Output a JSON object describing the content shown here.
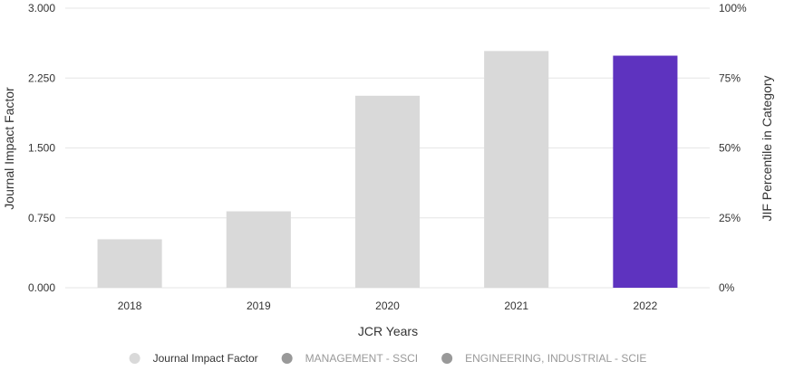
{
  "chart_data": {
    "type": "bar",
    "categories": [
      "2018",
      "2019",
      "2020",
      "2021",
      "2022"
    ],
    "series": [
      {
        "name": "Journal Impact Factor",
        "values": [
          0.52,
          0.82,
          2.06,
          2.54,
          2.49
        ]
      }
    ],
    "highlight_index": 4,
    "xlabel": "JCR Years",
    "ylabel": "Journal Impact Factor",
    "y2label": "JIF Percentile in Category",
    "ylim": [
      0,
      3
    ],
    "y2lim": [
      0,
      100
    ],
    "y_ticks": [
      "0.000",
      "0.750",
      "1.500",
      "2.250",
      "3.000"
    ],
    "y_tick_values": [
      0,
      0.75,
      1.5,
      2.25,
      3
    ],
    "y2_ticks": [
      "0%",
      "25%",
      "50%",
      "75%",
      "100%"
    ],
    "y2_tick_values": [
      0,
      25,
      50,
      75,
      100
    ],
    "grid": true,
    "legend_position": "bottom",
    "legend": [
      {
        "label": "Journal Impact Factor",
        "color": "#d9d9d9",
        "active": true
      },
      {
        "label": "MANAGEMENT - SSCI",
        "color": "#999999",
        "active": false
      },
      {
        "label": "ENGINEERING, INDUSTRIAL - SCIE",
        "color": "#999999",
        "active": false
      }
    ],
    "colors": {
      "bar": "#d9d9d9",
      "highlight": "#5e33bf",
      "grid": "#e6e6e6",
      "text": "#333333",
      "muted_text": "#999999"
    }
  }
}
